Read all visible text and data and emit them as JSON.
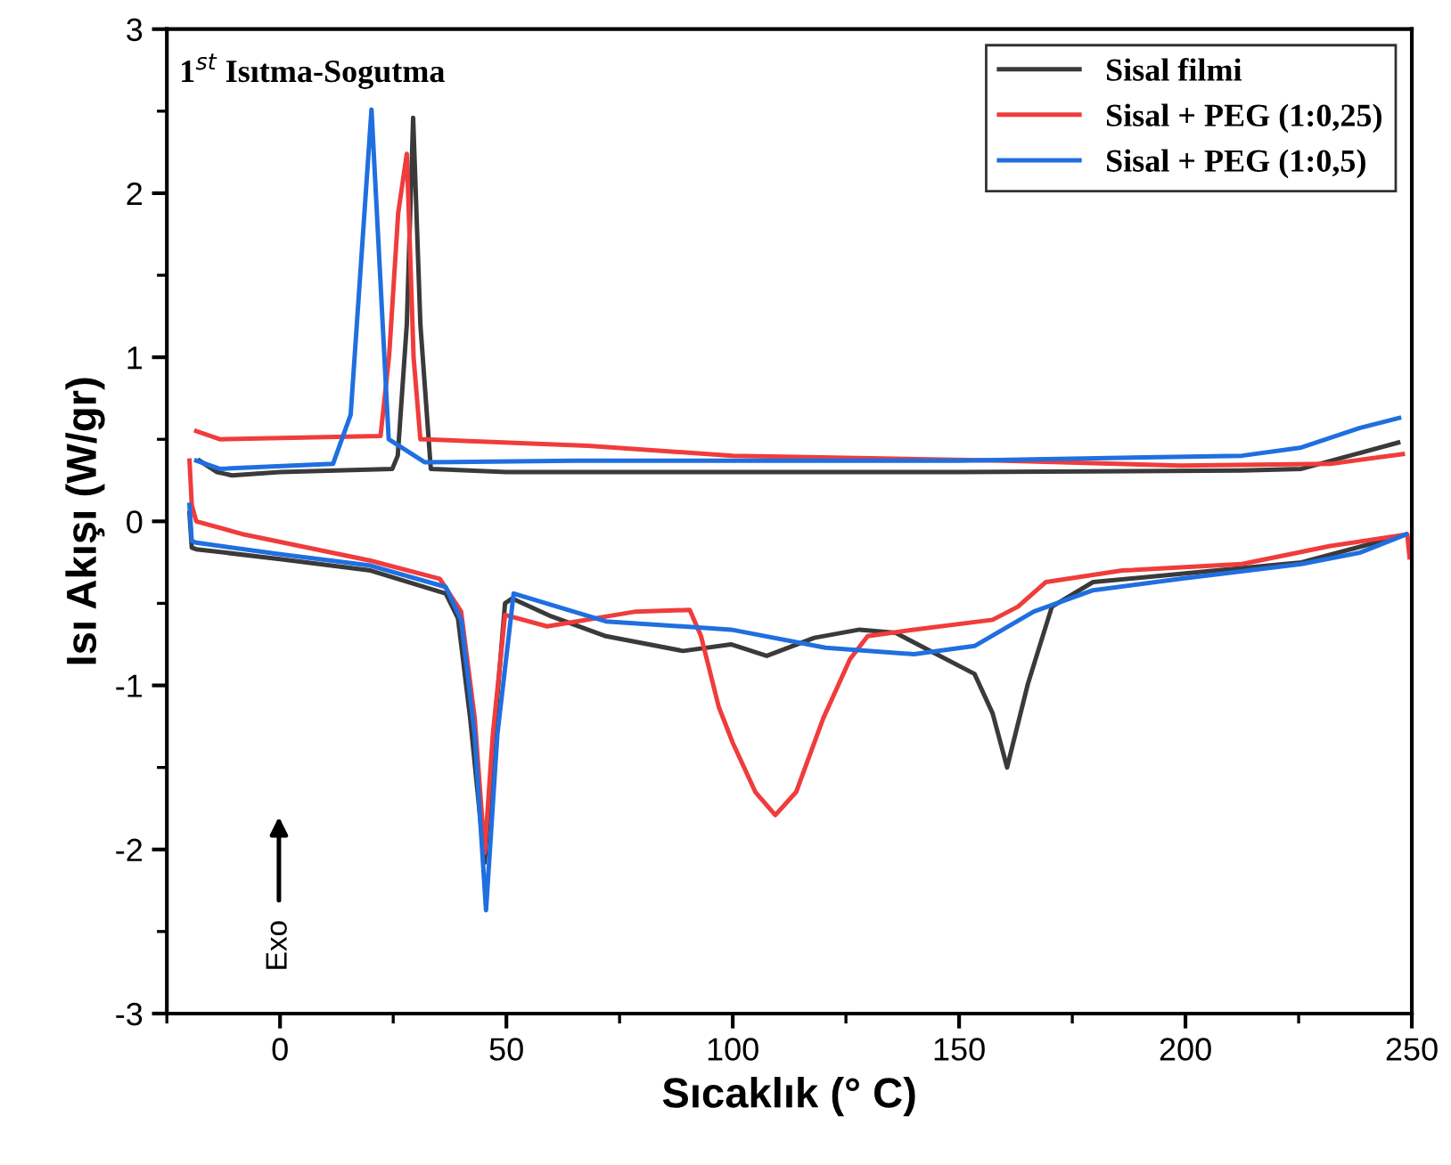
{
  "chart_data": {
    "type": "line",
    "xlabel": "Sıcaklık (° C)",
    "ylabel": "Isı Akışı (W/gr)",
    "xlim": [
      -25,
      250
    ],
    "xticks": [
      0,
      50,
      100,
      150,
      200,
      250
    ],
    "ylim": [
      -3,
      3
    ],
    "yticks": [
      -3,
      -2,
      -1,
      0,
      1,
      2,
      3
    ],
    "grid": false,
    "legend": "top right",
    "marker": "none",
    "line_style": "solid",
    "annotations": [
      "1$^{st}$ Isıtma-Sogutma",
      "Exo"
    ],
    "series": [
      {
        "name": "Sisal filmi",
        "color": "#3a3a3a",
        "x": [
          -20,
          -19.5,
          -18.5,
          0,
          20,
          36.6,
          39.3,
          42,
          45.2,
          47,
          49.7,
          51.3,
          60,
          72,
          89,
          99.6,
          107.5,
          118,
          128,
          136,
          153.4,
          157.4,
          160.6,
          165.2,
          170.5,
          179.6,
          199,
          225.6,
          248.7
        ],
        "values": [
          0.05,
          -0.16,
          -0.17,
          -0.23,
          -0.3,
          -0.44,
          -0.59,
          -1.2,
          -2.08,
          -1.4,
          -0.5,
          -0.47,
          -0.58,
          -0.7,
          -0.79,
          -0.75,
          -0.82,
          -0.71,
          -0.66,
          -0.68,
          -0.93,
          -1.17,
          -1.5,
          -0.99,
          -0.52,
          -0.37,
          -0.32,
          -0.25,
          -0.08
        ]
      },
      {
        "color": "#3a3a3a",
        "x": [
          -17.8,
          -13.9,
          -10.6,
          0,
          24.8,
          26,
          28,
          29.4,
          31,
          33.3,
          50,
          150,
          212.5,
          225.6,
          247
        ],
        "values": [
          0.37,
          0.3,
          0.28,
          0.3,
          0.32,
          0.4,
          1.2,
          2.46,
          1.2,
          0.32,
          0.3,
          0.3,
          0.31,
          0.32,
          0.48
        ]
      },
      {
        "name": "Sisal + PEG (1:0,25)",
        "color": "#f03c3c",
        "x": [
          -20,
          -19.5,
          -18.5,
          -8,
          20,
          35.3,
          40,
          43,
          45.2,
          47,
          49.7,
          59,
          78.6,
          90.5,
          93,
          96.9,
          100,
          105,
          109.4,
          114,
          120,
          125.9,
          129.8,
          140,
          157.4,
          163,
          169.2,
          186,
          212.5,
          232,
          249,
          249.5
        ],
        "values": [
          0.37,
          0.1,
          0,
          -0.08,
          -0.24,
          -0.35,
          -0.55,
          -1.2,
          -2.02,
          -1.3,
          -0.57,
          -0.64,
          -0.55,
          -0.54,
          -0.7,
          -1.13,
          -1.35,
          -1.65,
          -1.79,
          -1.65,
          -1.2,
          -0.84,
          -0.7,
          -0.66,
          -0.6,
          -0.52,
          -0.37,
          -0.3,
          -0.26,
          -0.15,
          -0.08,
          -0.22
        ]
      },
      {
        "color": "#f03c3c",
        "x": [
          -18.5,
          -13.3,
          22.2,
          24.1,
          26.1,
          28,
          29.5,
          31,
          32,
          68,
          100,
          160,
          199,
          232,
          248
        ],
        "values": [
          0.55,
          0.5,
          0.52,
          1.01,
          1.88,
          2.24,
          1.0,
          0.5,
          0.5,
          0.46,
          0.4,
          0.37,
          0.34,
          0.35,
          0.41
        ]
      },
      {
        "name": "Sisal + PEG (1:0,5)",
        "color": "#1f6fe0",
        "x": [
          -20,
          -19.5,
          -18.5,
          0,
          20,
          36.6,
          40,
          43,
          45.5,
          48,
          51.6,
          72,
          99.6,
          120.5,
          140,
          153.4,
          166.5,
          179.6,
          199,
          225.6,
          238.6,
          248.7
        ],
        "values": [
          0.1,
          -0.12,
          -0.13,
          -0.2,
          -0.27,
          -0.4,
          -0.6,
          -1.3,
          -2.37,
          -1.3,
          -0.44,
          -0.61,
          -0.66,
          -0.77,
          -0.81,
          -0.76,
          -0.55,
          -0.42,
          -0.35,
          -0.26,
          -0.19,
          -0.08
        ]
      },
      {
        "color": "#1f6fe0",
        "x": [
          -18.5,
          -13.3,
          11.7,
          15.6,
          20.2,
          24,
          32,
          65.4,
          150,
          212.5,
          225.6,
          238.6,
          247.2
        ],
        "values": [
          0.37,
          0.32,
          0.35,
          0.65,
          2.51,
          0.5,
          0.36,
          0.37,
          0.37,
          0.4,
          0.45,
          0.57,
          0.63
        ]
      }
    ]
  }
}
